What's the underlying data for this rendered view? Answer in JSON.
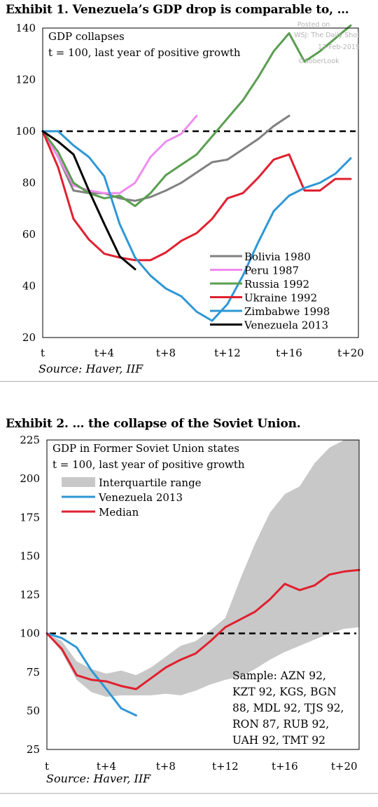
{
  "exhibits": [
    {
      "title": "Exhibit 1. Venezuela’s GDP drop is comparable to, …",
      "source": "Source: Haver, IIF",
      "watermark": [
        "Posted on",
        "WSJ: The Daily Shot",
        "13-Feb-2019",
        "©SoberLook"
      ],
      "colors": {
        "Bolivia 1980": "#808080",
        "Peru 1987": "#ef8cef",
        "Russia 1992": "#5a9e50",
        "Ukraine 1992": "#e0202f",
        "Zimbabwe 1998": "#2e97d6",
        "Venezuela 2013": "#000000",
        "reference": "#000000"
      },
      "chart_data": {
        "type": "line",
        "title": "GDP collapses",
        "subtitle": "t = 100, last year of positive growth",
        "xlabel": "",
        "ylabel": "",
        "x_tick_labels": [
          "t",
          "t+4",
          "t+8",
          "t+12",
          "t+16",
          "t+20"
        ],
        "x_tick_positions": [
          0,
          4,
          8,
          12,
          16,
          20
        ],
        "xlim": [
          0,
          20.5
        ],
        "ylim": [
          20,
          140
        ],
        "y_ticks": [
          20,
          40,
          60,
          80,
          100,
          120,
          140
        ],
        "legend_position": "bottom-right",
        "reference_line": {
          "y": 100,
          "style": "dashed"
        },
        "series": [
          {
            "name": "Bolivia 1980",
            "x": [
              0,
              1,
              2,
              3,
              4,
              5,
              6,
              7,
              8,
              9,
              10,
              11,
              12,
              13,
              14,
              15,
              16
            ],
            "y": [
              100,
              90,
              77,
              76,
              76,
              74,
              73,
              74.5,
              77,
              80,
              84,
              88,
              89,
              93,
              97,
              102,
              106
            ]
          },
          {
            "name": "Peru 1987",
            "x": [
              0,
              1,
              2,
              3,
              4,
              5,
              6,
              7,
              8,
              9,
              10
            ],
            "y": [
              100,
              90,
              79,
              77,
              76,
              76,
              80,
              90,
              96,
              99,
              106
            ]
          },
          {
            "name": "Russia 1992",
            "x": [
              0,
              1,
              2,
              3,
              4,
              5,
              6,
              7,
              8,
              9,
              10,
              11,
              12,
              13,
              14,
              15,
              16,
              17,
              18,
              19,
              20
            ],
            "y": [
              100,
              92,
              80,
              76,
              74,
              75,
              71,
              76,
              83,
              87,
              91,
              98,
              105,
              112,
              121,
              131,
              138,
              127,
              131,
              136,
              141
            ]
          },
          {
            "name": "Ukraine 1992",
            "x": [
              0,
              1,
              2,
              3,
              4,
              5,
              6,
              7,
              8,
              9,
              10,
              11,
              12,
              13,
              14,
              15,
              16,
              17,
              18,
              19,
              20
            ],
            "y": [
              100,
              86,
              66,
              58,
              52.5,
              51,
              50,
              50,
              53,
              57.5,
              60.5,
              66,
              74,
              76,
              82,
              89,
              91,
              77,
              77,
              81.5,
              81.5
            ]
          },
          {
            "name": "Zimbabwe 1998",
            "x": [
              0,
              1,
              2,
              3,
              4,
              5,
              6,
              7,
              8,
              9,
              10,
              11,
              12,
              13,
              14,
              15,
              16,
              17,
              18,
              19,
              20
            ],
            "y": [
              100,
              100,
              94.5,
              90,
              82.5,
              64,
              51,
              44,
              39,
              36,
              30,
              26.5,
              33,
              44,
              57,
              69,
              75,
              78,
              80,
              83.5,
              89.5
            ]
          },
          {
            "name": "Venezuela 2013",
            "x": [
              0,
              1,
              2,
              3,
              4,
              5,
              6
            ],
            "y": [
              100,
              96,
              91,
              77,
              64,
              51.5,
              46.5
            ]
          }
        ]
      }
    },
    {
      "title": "Exhibit 2. … the collapse of the Soviet Union.",
      "source": "Source: Haver, IIF",
      "note": [
        "Sample: AZN 92,",
        "KZT 92,  KGS,  BGN",
        "88, MDL 92, TJS 92,",
        "RON 87, RUB 92,",
        "UAH 92, TMT 92"
      ],
      "colors": {
        "Interquartile range": "#c8c8c8",
        "Venezuela 2013": "#2e97d6",
        "Median": "#e0202f",
        "reference": "#000000"
      },
      "chart_data": {
        "type": "area",
        "title": "GDP in Former Soviet Union states",
        "subtitle": "t = 100, last year of positive growth",
        "xlabel": "",
        "ylabel": "",
        "x_tick_labels": [
          "t",
          "t+4",
          "t+8",
          "t+12",
          "t+16",
          "t+20"
        ],
        "x_tick_positions": [
          0,
          4,
          8,
          12,
          16,
          20
        ],
        "xlim": [
          0,
          21
        ],
        "ylim": [
          25,
          225
        ],
        "y_ticks": [
          25,
          50,
          75,
          100,
          125,
          150,
          175,
          200,
          225
        ],
        "legend_position": "top-left",
        "reference_line": {
          "y": 100,
          "style": "dashed"
        },
        "band": {
          "name": "Interquartile range",
          "x": [
            0,
            1,
            2,
            3,
            4,
            5,
            6,
            7,
            8,
            9,
            10,
            11,
            12,
            13,
            14,
            15,
            16,
            17,
            18,
            19,
            20,
            21
          ],
          "lower": [
            100,
            88,
            70,
            62,
            59,
            60,
            60,
            60,
            61,
            60,
            63,
            67,
            70,
            72,
            77,
            83,
            88,
            92,
            96,
            100,
            103,
            104
          ],
          "upper": [
            100,
            95,
            82,
            77,
            74,
            76,
            73,
            78,
            85,
            92,
            95,
            102,
            110,
            135,
            158,
            178,
            190,
            195,
            210,
            220,
            225,
            225
          ]
        },
        "series": [
          {
            "name": "Venezuela 2013",
            "x": [
              0,
              1,
              2,
              3,
              4,
              5,
              6
            ],
            "y": [
              100,
              97,
              91,
              76,
              64,
              51.5,
              47
            ]
          },
          {
            "name": "Median",
            "x": [
              0,
              1,
              2,
              3,
              4,
              5,
              6,
              7,
              8,
              9,
              10,
              11,
              12,
              13,
              14,
              15,
              16,
              17,
              18,
              19,
              20,
              21
            ],
            "y": [
              100,
              90,
              73,
              70,
              69,
              66,
              64,
              71,
              78,
              83,
              87,
              95,
              104,
              109,
              114,
              122,
              132,
              128,
              131,
              138,
              140,
              141
            ]
          }
        ]
      }
    }
  ]
}
